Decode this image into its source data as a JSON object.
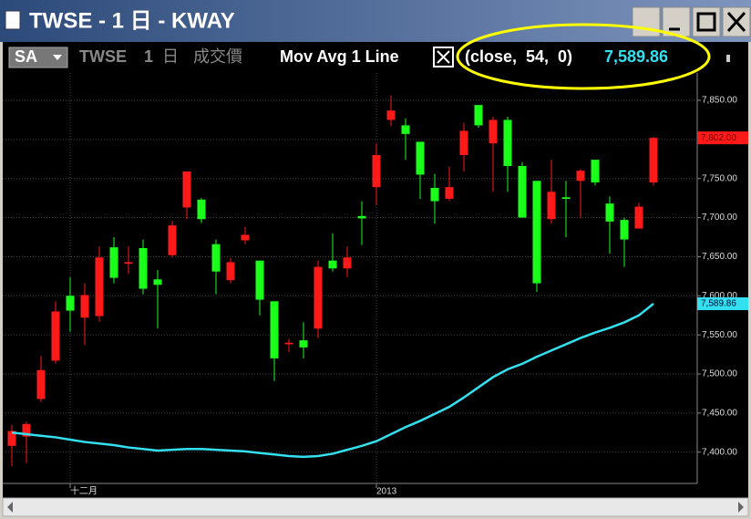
{
  "window": {
    "title": "TWSE - 1 日 - KWAY",
    "symbol_button": "SA",
    "symbol": "TWSE",
    "interval": "1",
    "interval_unit": "日",
    "field": "成交價"
  },
  "chart_data": {
    "type": "candlestick",
    "categories": [
      null,
      null,
      null,
      null,
      "十二月",
      null,
      null,
      null,
      null,
      null,
      null,
      null,
      null,
      null,
      null,
      null,
      null,
      null,
      null,
      null,
      null,
      null,
      null,
      null,
      null,
      "2013",
      null,
      null,
      null,
      null,
      null,
      null,
      null,
      null,
      null,
      null,
      null,
      null,
      null,
      null,
      null,
      null,
      null,
      null,
      null
    ],
    "open": [
      7408,
      7420,
      7468,
      7517,
      7600,
      7572,
      7574,
      7662,
      7641,
      7661,
      7621,
      7652,
      7713,
      7723,
      7666,
      7620,
      7671,
      7645,
      7593,
      7538,
      7543,
      7558,
      7645,
      7635,
      7702,
      7739,
      7825,
      7818,
      7797,
      7738,
      7724,
      7780,
      7844,
      7795,
      7825,
      7766,
      7747,
      7698,
      7726,
      7747,
      7774,
      7718,
      7697,
      7686,
      7745
    ],
    "high": [
      7435,
      7439,
      7523,
      7593,
      7624,
      7616,
      7663,
      7675,
      7663,
      7672,
      7633,
      7696,
      7759,
      7725,
      7672,
      7648,
      7688,
      7645,
      7593,
      7545,
      7566,
      7645,
      7680,
      7663,
      7721,
      7795,
      7856,
      7827,
      7797,
      7756,
      7765,
      7821,
      7844,
      7829,
      7829,
      7771,
      7747,
      7774,
      7747,
      7762,
      7774,
      7727,
      7700,
      7719,
      7803
    ],
    "low": [
      7382,
      7386,
      7464,
      7513,
      7554,
      7537,
      7567,
      7616,
      7628,
      7602,
      7558,
      7649,
      7698,
      7693,
      7602,
      7616,
      7666,
      7575,
      7491,
      7528,
      7520,
      7546,
      7631,
      7624,
      7665,
      7716,
      7817,
      7774,
      7724,
      7692,
      7721,
      7759,
      7815,
      7733,
      7733,
      7700,
      7605,
      7692,
      7675,
      7700,
      7741,
      7654,
      7637,
      7686,
      7741
    ],
    "close": [
      7427,
      7436,
      7505,
      7580,
      7581,
      7601,
      7649,
      7623,
      7643,
      7609,
      7614,
      7690,
      7759,
      7698,
      7631,
      7643,
      7678,
      7595,
      7520,
      7540,
      7534,
      7637,
      7635,
      7649,
      7699,
      7780,
      7837,
      7807,
      7755,
      7721,
      7739,
      7811,
      7818,
      7825,
      7766,
      7700,
      7616,
      7733,
      7724,
      7760,
      7745,
      7695,
      7672,
      7714,
      7802
    ],
    "close_labels": [
      null,
      null,
      null,
      null,
      null,
      null,
      null,
      null,
      null,
      null,
      null,
      null,
      null,
      null,
      null,
      null,
      null,
      null,
      null,
      null,
      null,
      null,
      null,
      null,
      null,
      null,
      null,
      null,
      null,
      null,
      null,
      null,
      null,
      null,
      null,
      null,
      null,
      null,
      null,
      null,
      null,
      null,
      null,
      null,
      "7,802.00"
    ],
    "up_color": "#ff1a1a",
    "down_color": "#1aff1a",
    "series": [
      {
        "name": "Mov Avg 1 Line",
        "params": "(close,  54,  0)",
        "color": "#33e0f0",
        "values": [
          7425,
          7423,
          7421,
          7419,
          7416,
          7413,
          7411,
          7409,
          7406,
          7404,
          7402,
          7403,
          7404,
          7404,
          7403,
          7402,
          7401,
          7399,
          7397,
          7395,
          7394,
          7395,
          7398,
          7403,
          7408,
          7414,
          7423,
          7432,
          7440,
          7449,
          7458,
          7470,
          7483,
          7496,
          7506,
          7513,
          7522,
          7530,
          7538,
          7546,
          7553,
          7559,
          7566,
          7575,
          7589.86
        ],
        "value_labels": [
          null,
          null,
          null,
          null,
          null,
          null,
          null,
          null,
          null,
          null,
          null,
          null,
          null,
          null,
          null,
          null,
          null,
          null,
          null,
          null,
          null,
          null,
          null,
          null,
          null,
          null,
          null,
          null,
          null,
          null,
          null,
          null,
          null,
          null,
          null,
          null,
          null,
          null,
          null,
          null,
          null,
          null,
          null,
          null,
          "7,589.86"
        ]
      }
    ],
    "ylim": [
      7360,
      7885
    ],
    "yticks": [
      {
        "value": 7400,
        "label": "7,400.00"
      },
      {
        "value": 7450,
        "label": "7,450.00"
      },
      {
        "value": 7500,
        "label": "7,500.00"
      },
      {
        "value": 7550,
        "label": "7,550.00"
      },
      {
        "value": 7600,
        "label": "7,600.00"
      },
      {
        "value": 7650,
        "label": "7,650.00"
      },
      {
        "value": 7700,
        "label": "7,700.00"
      },
      {
        "value": 7750,
        "label": "7,750.00"
      },
      {
        "value": 7800,
        "label": "7,800.00"
      },
      {
        "value": 7850,
        "label": "7,850.00"
      }
    ],
    "grid": true
  }
}
